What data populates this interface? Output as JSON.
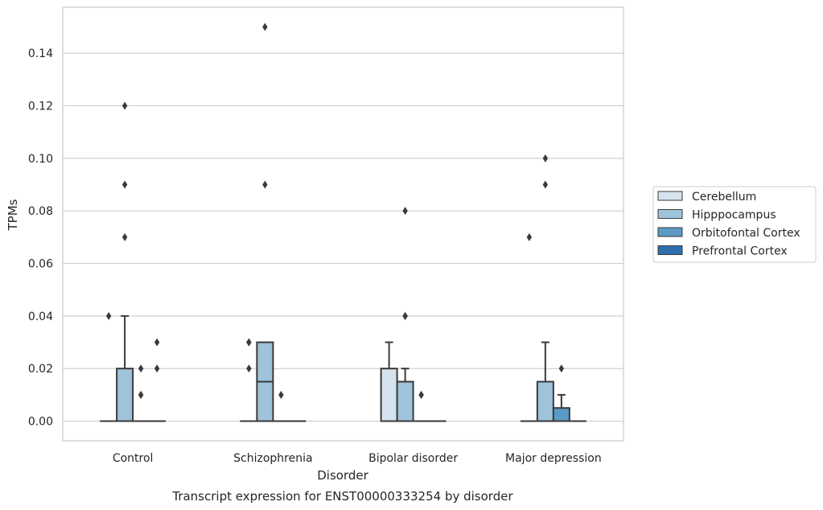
{
  "chart_data": {
    "type": "box",
    "title": "",
    "caption": "Transcript expression for ENST00000333254 by disorder",
    "xlabel": "Disorder",
    "ylabel": "TPMs",
    "ylim": [
      -0.0075,
      0.1575
    ],
    "yticks": [
      0.0,
      0.02,
      0.04,
      0.06,
      0.08,
      0.1,
      0.12,
      0.14
    ],
    "ytick_labels": [
      "0.00",
      "0.02",
      "0.04",
      "0.06",
      "0.08",
      "0.10",
      "0.12",
      "0.14"
    ],
    "grid": "horizontal",
    "legend_position": "right",
    "categories": [
      "Control",
      "Schizophrenia",
      "Bipolar disorder",
      "Major depression"
    ],
    "series": [
      {
        "name": "Cerebellum",
        "color": "#d6e3ef",
        "boxes": [
          {
            "q1": 0,
            "median": 0,
            "q3": 0,
            "whisker_low": 0,
            "whisker_high": 0,
            "outliers": [
              0.04
            ]
          },
          {
            "q1": 0,
            "median": 0,
            "q3": 0,
            "whisker_low": 0,
            "whisker_high": 0,
            "outliers": [
              0.02,
              0.03,
              0.03
            ]
          },
          {
            "q1": 0,
            "median": 0,
            "q3": 0.02,
            "whisker_low": 0,
            "whisker_high": 0.03,
            "outliers": []
          },
          {
            "q1": 0,
            "median": 0,
            "q3": 0,
            "whisker_low": 0,
            "whisker_high": 0,
            "outliers": [
              0.07
            ]
          }
        ]
      },
      {
        "name": "Hipppocampus",
        "color": "#9ec3db",
        "boxes": [
          {
            "q1": 0,
            "median": 0,
            "q3": 0.02,
            "whisker_low": 0,
            "whisker_high": 0.04,
            "outliers": [
              0.07,
              0.09,
              0.12
            ]
          },
          {
            "q1": 0,
            "median": 0.015,
            "q3": 0.03,
            "whisker_low": 0,
            "whisker_high": 0.03,
            "outliers": [
              0.09,
              0.15
            ]
          },
          {
            "q1": 0,
            "median": 0,
            "q3": 0.015,
            "whisker_low": 0,
            "whisker_high": 0.02,
            "outliers": [
              0.04,
              0.04,
              0.08
            ]
          },
          {
            "q1": 0,
            "median": 0,
            "q3": 0.015,
            "whisker_low": 0,
            "whisker_high": 0.03,
            "outliers": [
              0.09,
              0.1
            ]
          }
        ]
      },
      {
        "name": "Orbitofontal Cortex",
        "color": "#5b9ac7",
        "boxes": [
          {
            "q1": 0,
            "median": 0,
            "q3": 0,
            "whisker_low": 0,
            "whisker_high": 0,
            "outliers": [
              0.01,
              0.01,
              0.02
            ]
          },
          {
            "q1": 0,
            "median": 0,
            "q3": 0,
            "whisker_low": 0,
            "whisker_high": 0,
            "outliers": [
              0.01
            ]
          },
          {
            "q1": 0,
            "median": 0,
            "q3": 0,
            "whisker_low": 0,
            "whisker_high": 0,
            "outliers": [
              0.01,
              0.01
            ]
          },
          {
            "q1": 0,
            "median": 0,
            "q3": 0.005,
            "whisker_low": 0,
            "whisker_high": 0.01,
            "outliers": [
              0.02
            ]
          }
        ]
      },
      {
        "name": "Prefrontal Cortex",
        "color": "#2d6fad",
        "boxes": [
          {
            "q1": 0,
            "median": 0,
            "q3": 0,
            "whisker_low": 0,
            "whisker_high": 0,
            "outliers": [
              0.02,
              0.03
            ]
          },
          {
            "q1": 0,
            "median": 0,
            "q3": 0,
            "whisker_low": 0,
            "whisker_high": 0,
            "outliers": []
          },
          {
            "q1": 0,
            "median": 0,
            "q3": 0,
            "whisker_low": 0,
            "whisker_high": 0,
            "outliers": []
          },
          {
            "q1": 0,
            "median": 0,
            "q3": 0,
            "whisker_low": 0,
            "whisker_high": 0,
            "outliers": []
          }
        ]
      }
    ]
  }
}
